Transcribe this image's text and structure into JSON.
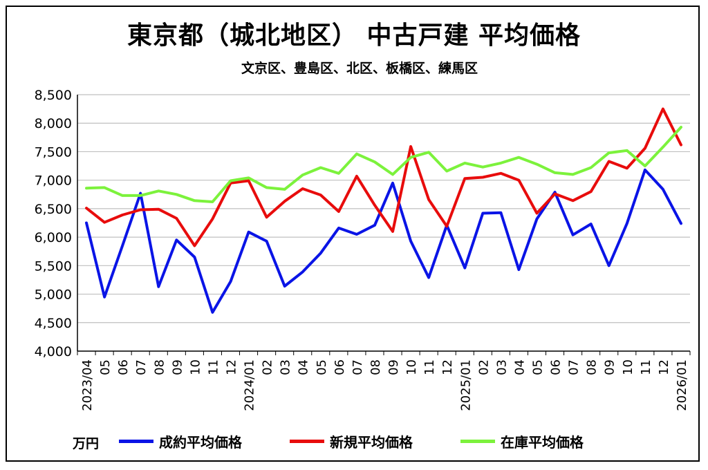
{
  "title": "東京都（城北地区） 中古戸建 平均価格",
  "subtitle": "文京区、豊島区、北区、板橋区、練馬区",
  "unit_label": "万円",
  "colors": {
    "series_1": "#0a14e6",
    "series_2": "#e80c0c",
    "series_3": "#7cf23c",
    "grid": "#bfbfbf",
    "axis": "#000000"
  },
  "chart_data": {
    "type": "line",
    "title": "東京都（城北地区） 中古戸建 平均価格",
    "subtitle": "文京区、豊島区、北区、板橋区、練馬区",
    "ylabel": "万円",
    "ylim": [
      4000,
      8500
    ],
    "yticks": [
      "4,000",
      "4,500",
      "5,000",
      "5,500",
      "6,000",
      "6,500",
      "7,000",
      "7,500",
      "8,000",
      "8,500"
    ],
    "grid": true,
    "legend_position": "bottom",
    "x": [
      "2023/04",
      "05",
      "06",
      "07",
      "08",
      "09",
      "10",
      "11",
      "12",
      "2024/01",
      "02",
      "03",
      "04",
      "05",
      "06",
      "07",
      "08",
      "09",
      "10",
      "11",
      "12",
      "2025/01",
      "02",
      "03",
      "04",
      "05",
      "06",
      "07",
      "08",
      "09",
      "10",
      "11",
      "12",
      "2026/01"
    ],
    "series": [
      {
        "name": "成約平均価格",
        "values": [
          6250,
          4950,
          5850,
          6770,
          5130,
          5950,
          5650,
          4680,
          5220,
          6090,
          5930,
          5140,
          5390,
          5720,
          6160,
          6050,
          6210,
          6950,
          5930,
          5290,
          6210,
          5460,
          6420,
          6430,
          5430,
          6320,
          6790,
          6040,
          6230,
          5500,
          6240,
          7180,
          6840,
          6240
        ]
      },
      {
        "name": "新規平均価格",
        "values": [
          6510,
          6260,
          6390,
          6480,
          6490,
          6330,
          5850,
          6320,
          6950,
          6990,
          6350,
          6630,
          6850,
          6740,
          6450,
          7070,
          6560,
          6100,
          7590,
          6660,
          6190,
          7030,
          7050,
          7120,
          7000,
          6420,
          6760,
          6640,
          6800,
          7330,
          7210,
          7560,
          8250,
          7620
        ]
      },
      {
        "name": "在庫平均価格",
        "values": [
          6860,
          6870,
          6730,
          6730,
          6810,
          6750,
          6640,
          6620,
          6990,
          7040,
          6870,
          6840,
          7090,
          7220,
          7120,
          7460,
          7320,
          7100,
          7400,
          7490,
          7160,
          7300,
          7230,
          7300,
          7400,
          7280,
          7130,
          7100,
          7220,
          7480,
          7520,
          7250,
          7580,
          7930
        ]
      }
    ]
  }
}
